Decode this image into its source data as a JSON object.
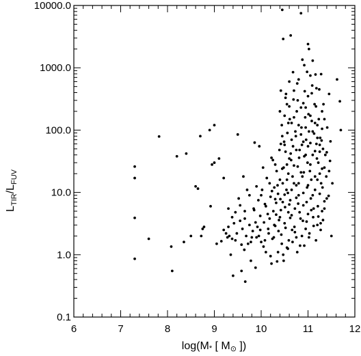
{
  "chart_data": {
    "type": "scatter",
    "title": "",
    "xlabel": {
      "main": "log(M",
      "sub": "*",
      "bracket": " [ M",
      "sun": "⊙",
      "close": " ])"
    },
    "ylabel": {
      "sub1": "TIR",
      "sep": "/",
      "sub2": "FUV",
      "letter": "L"
    },
    "xlim": [
      6,
      12
    ],
    "ylim": [
      0.1,
      10000
    ],
    "yscale": "log",
    "grid": false,
    "marker_color": "#000000",
    "x_ticks": [
      "6",
      "7",
      "8",
      "9",
      "10",
      "11",
      "12"
    ],
    "y_ticks": [
      "0.1",
      "1.0",
      "10.0",
      "100.0",
      "1000.0",
      "10000.0"
    ],
    "points": [
      [
        7.3,
        26
      ],
      [
        7.3,
        17
      ],
      [
        7.3,
        3.9
      ],
      [
        7.3,
        0.86
      ],
      [
        7.6,
        1.8
      ],
      [
        7.82,
        79
      ],
      [
        8.08,
        1.35
      ],
      [
        8.1,
        0.55
      ],
      [
        8.2,
        38
      ],
      [
        8.35,
        1.6
      ],
      [
        8.4,
        42
      ],
      [
        8.5,
        2.0
      ],
      [
        8.6,
        12.5
      ],
      [
        8.65,
        11.5
      ],
      [
        8.7,
        80
      ],
      [
        8.72,
        2.0
      ],
      [
        8.75,
        2.6
      ],
      [
        8.78,
        2.8
      ],
      [
        8.9,
        100
      ],
      [
        8.92,
        6.0
      ],
      [
        8.95,
        28
      ],
      [
        9.0,
        120
      ],
      [
        9.0,
        30
      ],
      [
        9.05,
        1.5
      ],
      [
        9.1,
        35
      ],
      [
        9.2,
        17
      ],
      [
        9.25,
        2.2
      ],
      [
        9.28,
        1.9
      ],
      [
        9.3,
        2.8
      ],
      [
        9.3,
        5.5
      ],
      [
        9.32,
        2.0
      ],
      [
        9.35,
        1.0
      ],
      [
        9.38,
        4.0
      ],
      [
        9.4,
        0.46
      ],
      [
        9.42,
        3.2
      ],
      [
        9.45,
        1.7
      ],
      [
        9.5,
        85
      ],
      [
        9.52,
        8.0
      ],
      [
        9.55,
        3.5
      ],
      [
        9.58,
        0.55
      ],
      [
        9.6,
        2.6
      ],
      [
        9.62,
        18
      ],
      [
        9.64,
        1.2
      ],
      [
        9.65,
        5.0
      ],
      [
        9.66,
        0.37
      ],
      [
        9.7,
        11
      ],
      [
        9.72,
        1.5
      ],
      [
        9.75,
        3.0
      ],
      [
        9.78,
        0.8
      ],
      [
        9.8,
        1.9
      ],
      [
        9.82,
        2.4
      ],
      [
        9.84,
        5.5
      ],
      [
        9.86,
        63
      ],
      [
        9.88,
        0.62
      ],
      [
        9.9,
        1.9
      ],
      [
        9.92,
        2.8
      ],
      [
        9.94,
        7.5
      ],
      [
        9.96,
        55
      ],
      [
        9.98,
        4.2
      ],
      [
        10.0,
        1.6
      ],
      [
        10.02,
        11
      ],
      [
        10.04,
        25
      ],
      [
        10.06,
        3.3
      ],
      [
        10.08,
        6.5
      ],
      [
        10.1,
        1.1
      ],
      [
        10.12,
        17
      ],
      [
        10.14,
        4.5
      ],
      [
        10.16,
        2.2
      ],
      [
        10.18,
        14
      ],
      [
        10.2,
        0.95
      ],
      [
        10.2,
        8.5
      ],
      [
        10.22,
        36
      ],
      [
        10.24,
        1.8
      ],
      [
        10.26,
        5.0
      ],
      [
        10.28,
        12
      ],
      [
        10.3,
        2.9
      ],
      [
        10.3,
        28
      ],
      [
        10.32,
        6.8
      ],
      [
        10.34,
        0.78
      ],
      [
        10.36,
        9.5
      ],
      [
        10.38,
        3.6
      ],
      [
        10.4,
        4.0
      ],
      [
        10.4,
        16
      ],
      [
        10.42,
        60
      ],
      [
        10.44,
        1.5
      ],
      [
        10.45,
        8500
      ],
      [
        10.46,
        7.0
      ],
      [
        10.47,
        2900
      ],
      [
        10.48,
        25
      ],
      [
        10.5,
        170
      ],
      [
        10.5,
        3.2
      ],
      [
        10.52,
        45
      ],
      [
        10.52,
        330
      ],
      [
        10.54,
        11
      ],
      [
        10.55,
        1.3
      ],
      [
        10.56,
        90
      ],
      [
        10.58,
        4.8
      ],
      [
        10.58,
        20
      ],
      [
        10.6,
        240
      ],
      [
        10.6,
        600
      ],
      [
        10.62,
        7.5
      ],
      [
        10.63,
        3300
      ],
      [
        10.64,
        33
      ],
      [
        10.65,
        130
      ],
      [
        10.66,
        2.5
      ],
      [
        10.68,
        55
      ],
      [
        10.7,
        14
      ],
      [
        10.7,
        430
      ],
      [
        10.72,
        5.5
      ],
      [
        10.74,
        80
      ],
      [
        10.75,
        1.9
      ],
      [
        10.76,
        200
      ],
      [
        10.78,
        26
      ],
      [
        10.8,
        9.0
      ],
      [
        10.8,
        650
      ],
      [
        10.82,
        48
      ],
      [
        10.84,
        3.8
      ],
      [
        10.85,
        7500
      ],
      [
        10.86,
        110
      ],
      [
        10.88,
        18
      ],
      [
        10.9,
        270
      ],
      [
        10.9,
        6.2
      ],
      [
        10.92,
        38
      ],
      [
        10.92,
        1100
      ],
      [
        10.94,
        160
      ],
      [
        10.95,
        2.6
      ],
      [
        10.96,
        70
      ],
      [
        10.98,
        12
      ],
      [
        11.0,
        2400
      ],
      [
        11.0,
        350
      ],
      [
        11.0,
        4.5
      ],
      [
        11.02,
        95
      ],
      [
        11.02,
        2000
      ],
      [
        11.04,
        22
      ],
      [
        11.05,
        750
      ],
      [
        11.06,
        8.0
      ],
      [
        11.08,
        140
      ],
      [
        11.1,
        40
      ],
      [
        11.1,
        1300
      ],
      [
        11.12,
        5.5
      ],
      [
        11.14,
        260
      ],
      [
        11.15,
        18
      ],
      [
        11.16,
        780
      ],
      [
        11.18,
        60
      ],
      [
        11.2,
        120
      ],
      [
        11.2,
        3.0
      ],
      [
        11.22,
        30
      ],
      [
        11.24,
        450
      ],
      [
        11.25,
        9.5
      ],
      [
        11.26,
        75
      ],
      [
        11.28,
        14
      ],
      [
        11.3,
        200
      ],
      [
        11.3,
        5.0
      ],
      [
        11.32,
        50
      ],
      [
        11.35,
        25
      ],
      [
        11.4,
        8.0
      ],
      [
        11.5,
        2.0
      ],
      [
        11.62,
        650
      ],
      [
        11.68,
        290
      ],
      [
        11.7,
        100
      ],
      [
        10.25,
        33
      ],
      [
        10.28,
        3.0
      ],
      [
        10.33,
        22
      ],
      [
        10.36,
        1.1
      ],
      [
        10.39,
        48
      ],
      [
        10.41,
        7.8
      ],
      [
        10.43,
        2.1
      ],
      [
        10.44,
        120
      ],
      [
        10.46,
        14
      ],
      [
        10.48,
        0.8
      ],
      [
        10.49,
        65
      ],
      [
        10.51,
        5.8
      ],
      [
        10.53,
        380
      ],
      [
        10.55,
        28
      ],
      [
        10.57,
        9.8
      ],
      [
        10.59,
        1.7
      ],
      [
        10.61,
        150
      ],
      [
        10.63,
        42
      ],
      [
        10.65,
        4.3
      ],
      [
        10.67,
        18
      ],
      [
        10.69,
        310
      ],
      [
        10.71,
        2.8
      ],
      [
        10.73,
        95
      ],
      [
        10.75,
        13
      ],
      [
        10.77,
        560
      ],
      [
        10.79,
        6.6
      ],
      [
        10.81,
        36
      ],
      [
        10.83,
        1.4
      ],
      [
        10.85,
        230
      ],
      [
        10.87,
        58
      ],
      [
        10.89,
        3.5
      ],
      [
        10.91,
        21
      ],
      [
        10.93,
        420
      ],
      [
        10.95,
        110
      ],
      [
        10.97,
        7.0
      ],
      [
        10.99,
        30
      ],
      [
        11.01,
        180
      ],
      [
        11.03,
        2.2
      ],
      [
        11.05,
        62
      ],
      [
        11.07,
        16
      ],
      [
        11.09,
        520
      ],
      [
        11.11,
        4.0
      ],
      [
        11.13,
        88
      ],
      [
        11.15,
        11
      ],
      [
        11.17,
        240
      ],
      [
        11.19,
        35
      ],
      [
        11.21,
        6.0
      ],
      [
        11.23,
        150
      ],
      [
        11.25,
        20
      ],
      [
        11.27,
        3.2
      ],
      [
        11.29,
        68
      ],
      [
        11.31,
        12
      ],
      [
        11.33,
        260
      ],
      [
        11.35,
        5.5
      ],
      [
        11.37,
        40
      ],
      [
        11.39,
        18
      ],
      [
        11.41,
        110
      ],
      [
        11.44,
        8.8
      ],
      [
        11.47,
        32
      ],
      [
        11.52,
        14
      ],
      [
        9.95,
        2.0
      ],
      [
        10.05,
        1.35
      ],
      [
        10.15,
        2.6
      ],
      [
        10.22,
        0.72
      ],
      [
        10.27,
        1.9
      ],
      [
        10.32,
        4.4
      ],
      [
        10.37,
        2.4
      ],
      [
        10.47,
        1.0
      ],
      [
        10.52,
        2.7
      ],
      [
        10.57,
        1.25
      ],
      [
        10.62,
        3.9
      ],
      [
        10.67,
        1.6
      ],
      [
        10.72,
        2.3
      ],
      [
        10.77,
        1.1
      ],
      [
        10.82,
        4.8
      ],
      [
        10.87,
        2.0
      ],
      [
        10.92,
        1.4
      ],
      [
        10.97,
        3.4
      ],
      [
        11.02,
        1.9
      ],
      [
        11.07,
        5.2
      ],
      [
        11.12,
        2.9
      ],
      [
        11.17,
        1.7
      ],
      [
        11.22,
        4.1
      ],
      [
        11.27,
        2.5
      ],
      [
        11.32,
        3.6
      ],
      [
        9.45,
        4.8
      ],
      [
        9.55,
        6.2
      ],
      [
        9.65,
        3.8
      ],
      [
        9.75,
        9.0
      ],
      [
        9.85,
        5.2
      ],
      [
        9.9,
        12.5
      ],
      [
        10.0,
        9.0
      ],
      [
        10.1,
        6.0
      ],
      [
        10.18,
        3.8
      ],
      [
        10.23,
        10.5
      ],
      [
        10.3,
        7.8
      ],
      [
        10.35,
        13
      ],
      [
        10.42,
        5.2
      ],
      [
        10.45,
        24
      ],
      [
        10.5,
        9.2
      ],
      [
        10.55,
        16
      ],
      [
        10.6,
        6.4
      ],
      [
        10.65,
        11
      ],
      [
        10.7,
        27
      ],
      [
        10.75,
        8.2
      ],
      [
        10.8,
        14
      ],
      [
        10.85,
        21
      ],
      [
        10.9,
        9.8
      ],
      [
        10.95,
        40
      ],
      [
        11.0,
        13
      ],
      [
        11.05,
        28
      ],
      [
        11.1,
        9.0
      ],
      [
        11.15,
        46
      ],
      [
        11.2,
        16
      ],
      [
        11.25,
        58
      ],
      [
        11.3,
        24
      ],
      [
        11.35,
        7.2
      ],
      [
        11.4,
        44
      ],
      [
        11.45,
        22
      ],
      [
        11.48,
        66
      ],
      [
        10.4,
        200
      ],
      [
        10.45,
        80
      ],
      [
        10.5,
        58
      ],
      [
        10.55,
        260
      ],
      [
        10.6,
        35
      ],
      [
        10.65,
        70
      ],
      [
        10.7,
        160
      ],
      [
        10.75,
        48
      ],
      [
        10.8,
        120
      ],
      [
        10.85,
        85
      ],
      [
        10.9,
        65
      ],
      [
        10.95,
        230
      ],
      [
        11.0,
        55
      ],
      [
        11.05,
        170
      ],
      [
        11.1,
        95
      ],
      [
        11.15,
        130
      ],
      [
        11.2,
        75
      ],
      [
        11.25,
        45
      ],
      [
        11.3,
        105
      ],
      [
        11.35,
        150
      ],
      [
        10.42,
        430
      ],
      [
        10.58,
        130
      ],
      [
        10.68,
        850
      ],
      [
        10.78,
        300
      ],
      [
        10.88,
        1350
      ],
      [
        10.98,
        860
      ],
      [
        11.08,
        390
      ],
      [
        11.18,
        470
      ],
      [
        11.28,
        790
      ],
      [
        11.45,
        380
      ],
      [
        9.2,
        2.5
      ],
      [
        9.15,
        1.65
      ],
      [
        9.38,
        1.8
      ],
      [
        9.48,
        2.2
      ],
      [
        9.58,
        1.45
      ],
      [
        9.68,
        2.0
      ],
      [
        9.78,
        1.6
      ],
      [
        9.88,
        3.3
      ],
      [
        9.98,
        2.5
      ],
      [
        10.08,
        1.7
      ]
    ]
  }
}
